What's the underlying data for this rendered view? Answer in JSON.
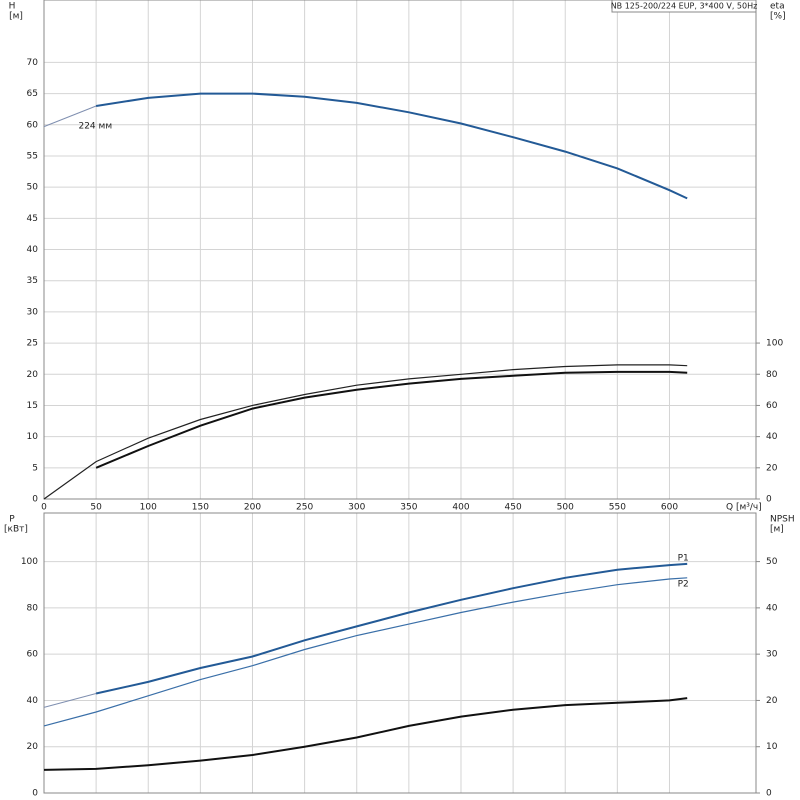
{
  "chart_data": [
    {
      "type": "line",
      "title": "NB 125-200/224 EUP, 3*400 V, 50Hz",
      "y_label": "H",
      "y_unit": "[м]",
      "y2_label": "eta",
      "y2_unit": "[%]",
      "x_label": "Q [м³/ч]",
      "x": [
        0,
        50,
        100,
        150,
        200,
        250,
        300,
        350,
        400,
        450,
        500,
        550,
        600,
        617
      ],
      "xlim": [
        0,
        683
      ],
      "xticks": [
        0,
        50,
        100,
        150,
        200,
        250,
        300,
        350,
        400,
        450,
        500,
        550,
        600
      ],
      "ylim": [
        0,
        80
      ],
      "yticks": [
        0,
        5,
        10,
        15,
        20,
        25,
        30,
        35,
        40,
        45,
        50,
        55,
        60,
        65,
        70
      ],
      "y2lim": [
        0,
        320
      ],
      "y2ticks": [
        0,
        20,
        40,
        60,
        80,
        100
      ],
      "grid": true,
      "series": [
        {
          "name": "224 мм",
          "color": "#7f8fb0",
          "width": 1,
          "values": [
            59.7,
            63,
            null,
            null,
            null,
            null,
            null,
            null,
            null,
            null,
            null,
            null,
            null,
            null
          ]
        },
        {
          "color": "#235a96",
          "width": 2,
          "values": [
            null,
            63,
            64.3,
            65,
            65,
            64.5,
            63.5,
            62,
            60.2,
            58,
            55.7,
            53,
            49.5,
            48.2
          ]
        },
        {
          "color": "#222222",
          "width": 1.2,
          "axis": "y2",
          "values": [
            0,
            24,
            39,
            51,
            60,
            67,
            73,
            77,
            80,
            83,
            85,
            86,
            86,
            85.5
          ]
        },
        {
          "color": "#111111",
          "width": 2,
          "axis": "y2",
          "values": [
            null,
            20,
            34,
            47,
            58,
            65,
            70,
            74,
            77,
            79,
            81,
            81.5,
            81.5,
            81
          ]
        }
      ]
    },
    {
      "type": "line",
      "y_label": "P",
      "y_unit": "[кВт]",
      "y2_label": "NPSH",
      "y2_unit": "[м]",
      "x": [
        0,
        50,
        100,
        150,
        200,
        250,
        300,
        350,
        400,
        450,
        500,
        550,
        600,
        617
      ],
      "xlim": [
        0,
        683
      ],
      "xticks": [
        0,
        50,
        100,
        150,
        200,
        250,
        300,
        350,
        400,
        450,
        500,
        550,
        600
      ],
      "ylim": [
        0,
        121
      ],
      "yticks": [
        0,
        20,
        40,
        60,
        80,
        100
      ],
      "y2lim": [
        0,
        60.5
      ],
      "y2ticks": [
        0,
        10,
        20,
        30,
        40,
        50
      ],
      "grid": true,
      "series": [
        {
          "color": "#7f8fb0",
          "width": 1,
          "values": [
            37,
            43,
            null,
            null,
            null,
            null,
            null,
            null,
            null,
            null,
            null,
            null,
            null,
            null
          ]
        },
        {
          "name": "P1",
          "color": "#235a96",
          "width": 2,
          "values": [
            null,
            43,
            48,
            54,
            59,
            66,
            72,
            78,
            83.5,
            88.5,
            93,
            96.5,
            98.5,
            99
          ]
        },
        {
          "name": "P2",
          "color": "#3a6fa8",
          "width": 1.2,
          "values": [
            29,
            35,
            42,
            49,
            55,
            62,
            68,
            73,
            78,
            82.5,
            86.5,
            90,
            92.5,
            93
          ]
        },
        {
          "color": "#111111",
          "width": 2,
          "axis": "y2",
          "values": [
            5,
            5.2,
            6,
            7,
            8.2,
            10,
            12,
            14.5,
            16.5,
            18,
            19,
            19.5,
            20,
            20.5
          ]
        }
      ]
    }
  ]
}
